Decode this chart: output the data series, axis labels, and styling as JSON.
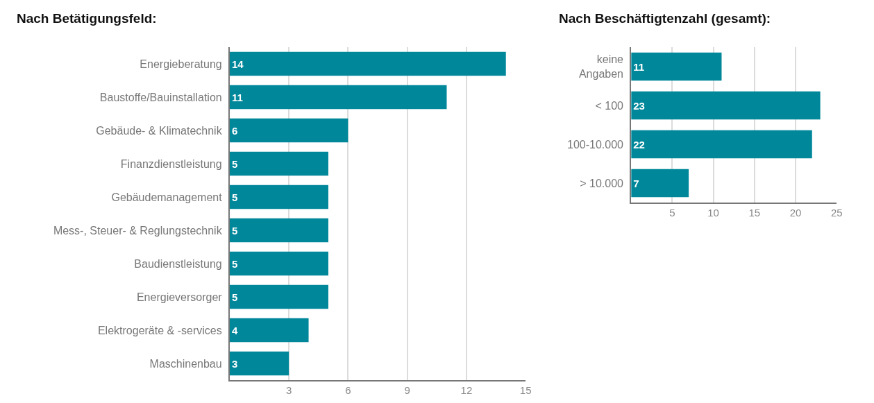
{
  "chart_data": [
    {
      "type": "bar",
      "orientation": "horizontal",
      "title": "Nach Betätigungsfeld:",
      "categories": [
        "Energieberatung",
        "Baustoffe/Bauinstallation",
        "Gebäude- & Klimatechnik",
        "Finanzdienstleistung",
        "Gebäudemanagement",
        "Mess-, Steuer- & Reglungstechnik",
        "Baudienstleistung",
        "Energieversorger",
        "Elektrogeräte & -services",
        "Maschinenbau"
      ],
      "values": [
        14,
        11,
        6,
        5,
        5,
        5,
        5,
        5,
        4,
        3
      ],
      "color": "#00879a",
      "xlim": [
        0,
        15
      ],
      "xticks": [
        3,
        6,
        9,
        12,
        15
      ],
      "grid": "x",
      "data_labels": true
    },
    {
      "type": "bar",
      "orientation": "horizontal",
      "title": "Nach Beschäftigtenzahl (gesamt):",
      "categories": [
        "keine\nAngaben",
        "< 100",
        "100-10.000",
        "> 10.000"
      ],
      "values": [
        11,
        23,
        22,
        7
      ],
      "color": "#00879a",
      "xlim": [
        0,
        25
      ],
      "xticks": [
        5,
        10,
        15,
        20,
        25
      ],
      "grid": "x",
      "data_labels": true
    }
  ]
}
